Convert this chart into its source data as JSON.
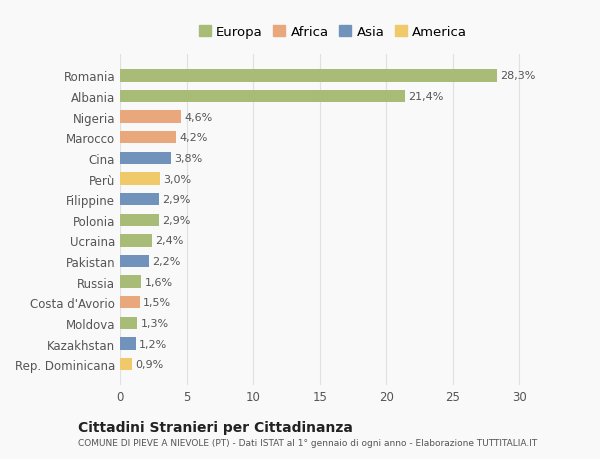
{
  "categories": [
    "Rep. Dominicana",
    "Kazakhstan",
    "Moldova",
    "Costa d'Avorio",
    "Russia",
    "Pakistan",
    "Ucraina",
    "Polonia",
    "Filippine",
    "Perù",
    "Cina",
    "Marocco",
    "Nigeria",
    "Albania",
    "Romania"
  ],
  "values": [
    0.9,
    1.2,
    1.3,
    1.5,
    1.6,
    2.2,
    2.4,
    2.9,
    2.9,
    3.0,
    3.8,
    4.2,
    4.6,
    21.4,
    28.3
  ],
  "colors": [
    "#f0c96a",
    "#7193bb",
    "#a8bc78",
    "#e8a87c",
    "#a8bc78",
    "#7193bb",
    "#a8bc78",
    "#a8bc78",
    "#7193bb",
    "#f0c96a",
    "#7193bb",
    "#e8a87c",
    "#e8a87c",
    "#a8bc78",
    "#a8bc78"
  ],
  "labels": [
    "0,9%",
    "1,2%",
    "1,3%",
    "1,5%",
    "1,6%",
    "2,2%",
    "2,4%",
    "2,9%",
    "2,9%",
    "3,0%",
    "3,8%",
    "4,2%",
    "4,6%",
    "21,4%",
    "28,3%"
  ],
  "legend_names": [
    "Europa",
    "Africa",
    "Asia",
    "America"
  ],
  "legend_colors": [
    "#a8bc78",
    "#e8a87c",
    "#7193bb",
    "#f0c96a"
  ],
  "title": "Cittadini Stranieri per Cittadinanza",
  "subtitle": "COMUNE DI PIEVE A NIEVOLE (PT) - Dati ISTAT al 1° gennaio di ogni anno - Elaborazione TUTTITALIA.IT",
  "xlim": [
    0,
    32
  ],
  "xticks": [
    0,
    5,
    10,
    15,
    20,
    25,
    30
  ],
  "background_color": "#f9f9f9",
  "bar_height": 0.6,
  "grid_color": "#e0e0e0"
}
